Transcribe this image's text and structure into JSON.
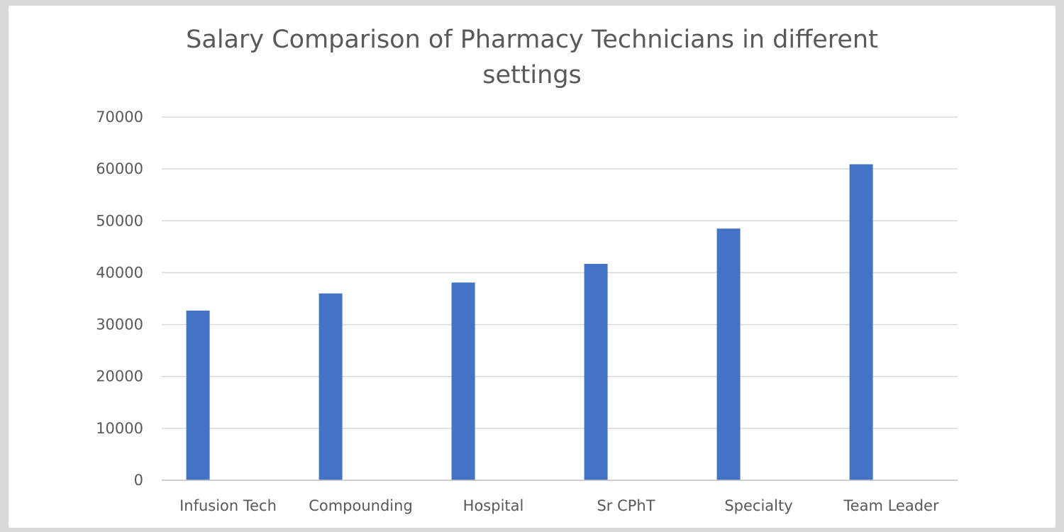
{
  "chart_data": {
    "type": "bar",
    "title_lines": [
      "Salary Comparison of Pharmacy Technicians in different",
      "settings"
    ],
    "categories": [
      "Infusion Tech",
      "Compounding",
      "Hospital",
      "Sr CPhT",
      "Specialty",
      "Team Leader"
    ],
    "series": [
      {
        "values": [
          32700,
          36000,
          38100,
          41700,
          48500,
          60900
        ],
        "color": "#4472c4"
      }
    ],
    "ylim": [
      0,
      70000
    ],
    "yticks": [
      0,
      10000,
      20000,
      30000,
      40000,
      50000,
      60000,
      70000
    ],
    "grid": true,
    "legend": "none",
    "colors": {
      "bar": "#4472c4",
      "grid": "#d9d9d9",
      "axis": "#bfbfbf",
      "text": "#595959"
    }
  }
}
